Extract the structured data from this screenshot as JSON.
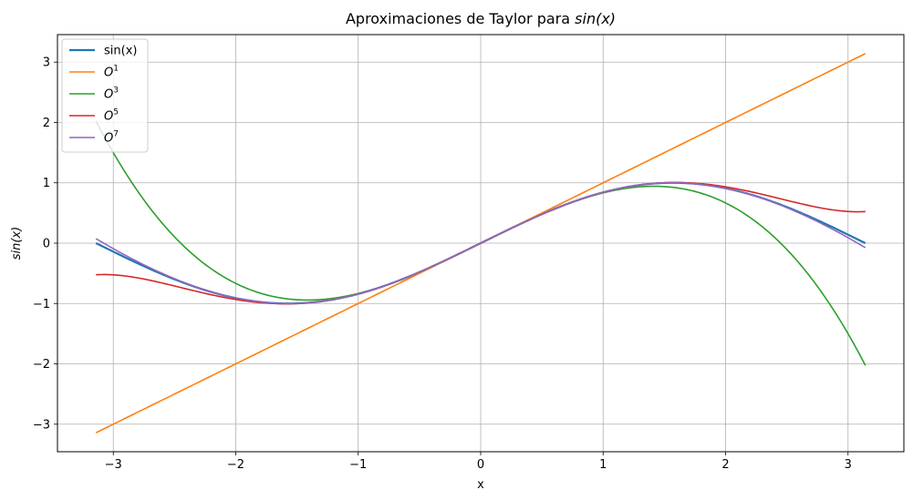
{
  "chart_data": {
    "type": "line",
    "title": {
      "prefix": "Aproximaciones de Taylor para ",
      "math": "sin(x)"
    },
    "xlabel": "x",
    "ylabel": "sin(x)",
    "xlim": [
      -3.456,
      3.456
    ],
    "ylim": [
      -3.456,
      3.456
    ],
    "xticks": [
      -3,
      -2,
      -1,
      0,
      1,
      2,
      3
    ],
    "yticks": [
      -3,
      -2,
      -1,
      0,
      1,
      2,
      3
    ],
    "xtick_labels": [
      "−3",
      "−2",
      "−1",
      "0",
      "1",
      "2",
      "3"
    ],
    "ytick_labels": [
      "−3",
      "−2",
      "−1",
      "0",
      "1",
      "2",
      "3"
    ],
    "grid": true,
    "legend_position": "top-left",
    "x_range": [
      -3.14159,
      3.14159
    ],
    "series": [
      {
        "name": "sin(x)",
        "base": "",
        "sup": "",
        "color": "#1f77b4",
        "width": 2.2,
        "function": "sin"
      },
      {
        "name": "O^1",
        "base": "O",
        "sup": "1",
        "color": "#ff7f0e",
        "width": 1.6,
        "order": 1
      },
      {
        "name": "O^3",
        "base": "O",
        "sup": "3",
        "color": "#2ca02c",
        "width": 1.6,
        "order": 3
      },
      {
        "name": "O^5",
        "base": "O",
        "sup": "5",
        "color": "#d62728",
        "width": 1.6,
        "order": 5
      },
      {
        "name": "O^7",
        "base": "O",
        "sup": "7",
        "color": "#9467bd",
        "width": 1.6,
        "order": 7
      }
    ]
  }
}
